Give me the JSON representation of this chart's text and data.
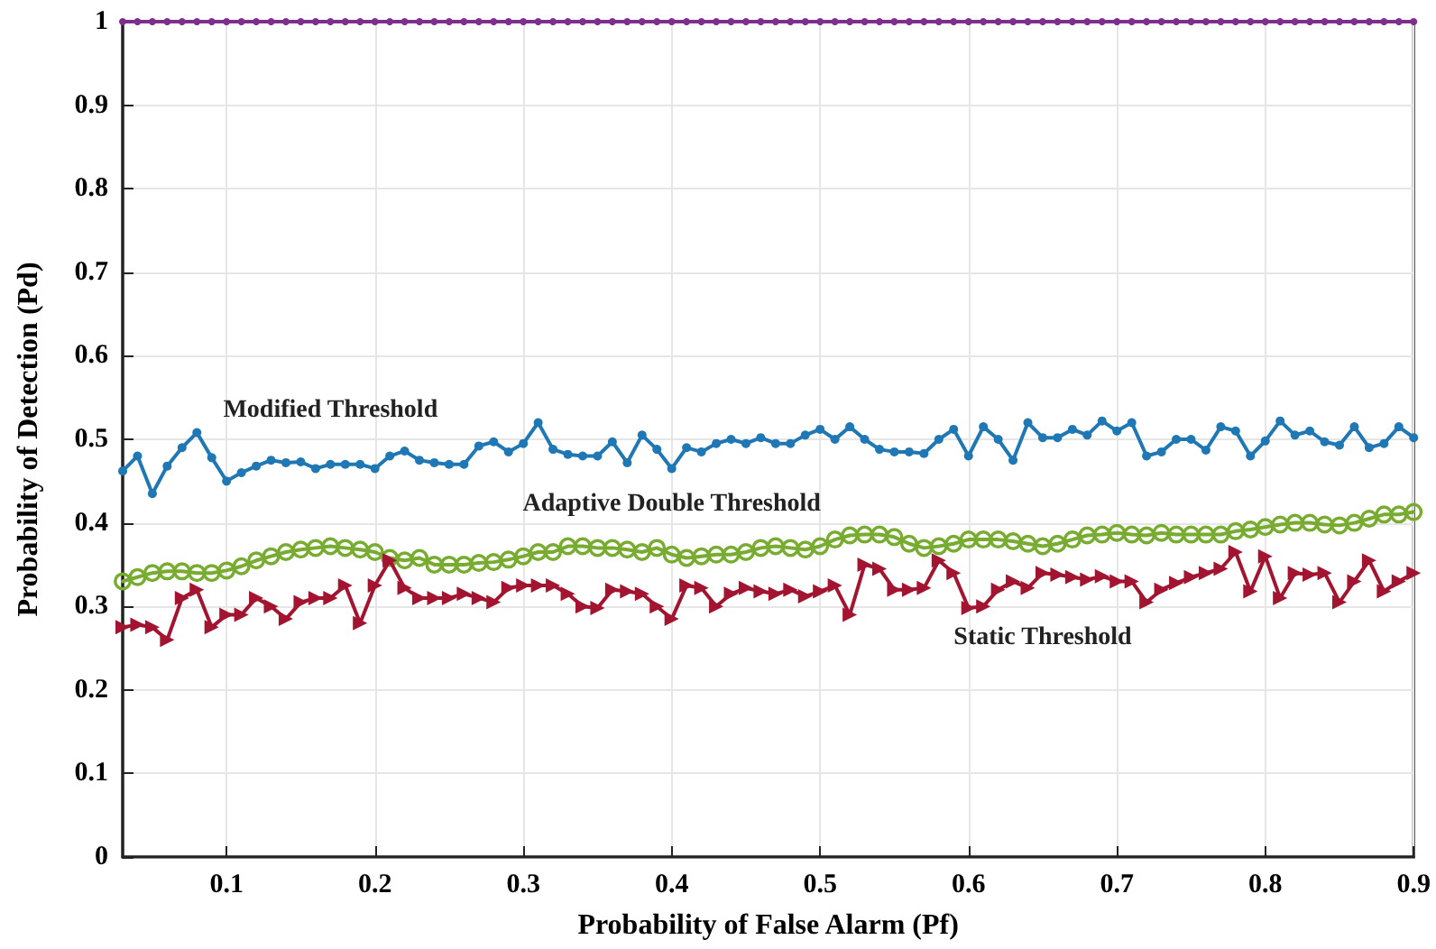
{
  "chart_data": {
    "type": "line",
    "xlabel": "Probability of False Alarm (Pf)",
    "ylabel": "Probability of Detection (Pd)",
    "x": [
      0.03,
      0.04,
      0.05,
      0.06,
      0.07,
      0.08,
      0.09,
      0.1,
      0.11,
      0.12,
      0.13,
      0.14,
      0.15,
      0.16,
      0.17,
      0.18,
      0.19,
      0.2,
      0.21,
      0.22,
      0.23,
      0.24,
      0.25,
      0.26,
      0.27,
      0.28,
      0.29,
      0.3,
      0.31,
      0.32,
      0.33,
      0.34,
      0.35,
      0.36,
      0.37,
      0.38,
      0.39,
      0.4,
      0.41,
      0.42,
      0.43,
      0.44,
      0.45,
      0.46,
      0.47,
      0.48,
      0.49,
      0.5,
      0.51,
      0.52,
      0.53,
      0.54,
      0.55,
      0.56,
      0.57,
      0.58,
      0.59,
      0.6,
      0.61,
      0.62,
      0.63,
      0.64,
      0.65,
      0.66,
      0.67,
      0.68,
      0.69,
      0.7,
      0.71,
      0.72,
      0.73,
      0.74,
      0.75,
      0.76,
      0.77,
      0.78,
      0.79,
      0.8,
      0.81,
      0.82,
      0.83,
      0.84,
      0.85,
      0.86,
      0.87,
      0.88,
      0.89,
      0.9
    ],
    "series": [
      {
        "color": "#7e2f8e",
        "marker": "circle",
        "values": [
          1,
          1,
          1,
          1,
          1,
          1,
          1,
          1,
          1,
          1,
          1,
          1,
          1,
          1,
          1,
          1,
          1,
          1,
          1,
          1,
          1,
          1,
          1,
          1,
          1,
          1,
          1,
          1,
          1,
          1,
          1,
          1,
          1,
          1,
          1,
          1,
          1,
          1,
          1,
          1,
          1,
          1,
          1,
          1,
          1,
          1,
          1,
          1,
          1,
          1,
          1,
          1,
          1,
          1,
          1,
          1,
          1,
          1,
          1,
          1,
          1,
          1,
          1,
          1,
          1,
          1,
          1,
          1,
          1,
          1,
          1,
          1,
          1,
          1,
          1,
          1,
          1,
          1,
          1,
          1,
          1,
          1,
          1,
          1,
          1,
          1,
          1,
          1
        ]
      },
      {
        "name": "Modified Threshold",
        "color": "#1f77b4",
        "marker": "circle",
        "values": [
          0.462,
          0.48,
          0.435,
          0.468,
          0.49,
          0.508,
          0.478,
          0.45,
          0.46,
          0.468,
          0.475,
          0.472,
          0.473,
          0.465,
          0.47,
          0.47,
          0.47,
          0.465,
          0.48,
          0.486,
          0.475,
          0.472,
          0.47,
          0.47,
          0.492,
          0.497,
          0.485,
          0.495,
          0.52,
          0.488,
          0.482,
          0.48,
          0.48,
          0.497,
          0.472,
          0.505,
          0.488,
          0.465,
          0.49,
          0.485,
          0.495,
          0.5,
          0.495,
          0.502,
          0.495,
          0.495,
          0.505,
          0.512,
          0.5,
          0.515,
          0.5,
          0.488,
          0.485,
          0.485,
          0.483,
          0.5,
          0.512,
          0.48,
          0.515,
          0.5,
          0.475,
          0.52,
          0.502,
          0.502,
          0.512,
          0.505,
          0.522,
          0.51,
          0.52,
          0.48,
          0.485,
          0.5,
          0.5,
          0.487,
          0.515,
          0.51,
          0.48,
          0.498,
          0.522,
          0.505,
          0.51,
          0.497,
          0.493,
          0.515,
          0.49,
          0.495,
          0.515,
          0.502
        ]
      },
      {
        "name": "Adaptive Double Threshold",
        "color": "#77ac30",
        "marker": "circle",
        "values": [
          0.33,
          0.335,
          0.34,
          0.342,
          0.342,
          0.34,
          0.34,
          0.343,
          0.348,
          0.355,
          0.36,
          0.365,
          0.368,
          0.37,
          0.372,
          0.37,
          0.368,
          0.365,
          0.358,
          0.355,
          0.358,
          0.35,
          0.35,
          0.35,
          0.352,
          0.353,
          0.356,
          0.36,
          0.365,
          0.365,
          0.372,
          0.372,
          0.37,
          0.37,
          0.368,
          0.365,
          0.37,
          0.362,
          0.358,
          0.36,
          0.362,
          0.362,
          0.365,
          0.37,
          0.372,
          0.37,
          0.368,
          0.372,
          0.38,
          0.385,
          0.386,
          0.386,
          0.383,
          0.375,
          0.37,
          0.372,
          0.375,
          0.38,
          0.38,
          0.38,
          0.378,
          0.375,
          0.372,
          0.375,
          0.38,
          0.385,
          0.386,
          0.388,
          0.386,
          0.385,
          0.388,
          0.386,
          0.386,
          0.386,
          0.386,
          0.39,
          0.392,
          0.395,
          0.398,
          0.4,
          0.4,
          0.398,
          0.397,
          0.4,
          0.405,
          0.41,
          0.41,
          0.413
        ]
      },
      {
        "name": "Static Threshold",
        "color": "#a2142f",
        "marker": "triangle",
        "values": [
          0.275,
          0.278,
          0.275,
          0.26,
          0.31,
          0.32,
          0.275,
          0.29,
          0.29,
          0.31,
          0.3,
          0.285,
          0.305,
          0.31,
          0.31,
          0.325,
          0.28,
          0.325,
          0.355,
          0.322,
          0.31,
          0.31,
          0.31,
          0.315,
          0.31,
          0.305,
          0.322,
          0.325,
          0.325,
          0.325,
          0.315,
          0.3,
          0.298,
          0.32,
          0.318,
          0.315,
          0.3,
          0.285,
          0.325,
          0.322,
          0.3,
          0.315,
          0.322,
          0.318,
          0.315,
          0.32,
          0.312,
          0.318,
          0.325,
          0.29,
          0.35,
          0.345,
          0.32,
          0.32,
          0.322,
          0.355,
          0.34,
          0.298,
          0.3,
          0.32,
          0.33,
          0.322,
          0.34,
          0.338,
          0.335,
          0.332,
          0.336,
          0.33,
          0.33,
          0.305,
          0.32,
          0.328,
          0.335,
          0.34,
          0.345,
          0.365,
          0.318,
          0.36,
          0.31,
          0.34,
          0.338,
          0.34,
          0.305,
          0.33,
          0.355,
          0.318,
          0.33,
          0.34
        ]
      }
    ],
    "xlim": [
      0.03,
      0.9
    ],
    "xticks": [
      0.1,
      0.2,
      0.3,
      0.4,
      0.5,
      0.6,
      0.7,
      0.8,
      0.9
    ],
    "ylim": [
      0,
      1
    ],
    "yticks": [
      0,
      0.1,
      0.2,
      0.3,
      0.4,
      0.5,
      0.6,
      0.7,
      0.8,
      0.9,
      1
    ],
    "grid": true,
    "legend": false,
    "line_style": "solid"
  }
}
